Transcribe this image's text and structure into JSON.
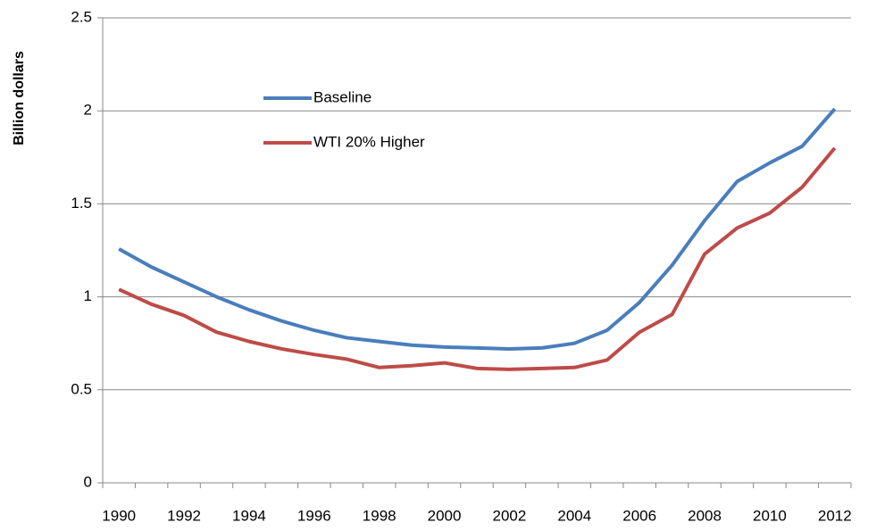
{
  "chart_data": {
    "type": "line",
    "y_label": "Billion dollars",
    "categories": [
      "1990",
      null,
      "1992",
      null,
      "1994",
      null,
      "1996",
      null,
      "1998",
      null,
      "2000",
      null,
      "2002",
      null,
      "2004",
      null,
      "2006",
      null,
      "2008",
      null,
      "2010",
      null,
      "2012"
    ],
    "series": [
      {
        "name": "Baseline",
        "color": "#4a7ebb",
        "values": [
          1.257,
          1.16,
          1.08,
          1.0,
          0.93,
          0.87,
          0.82,
          0.78,
          0.76,
          0.74,
          0.73,
          0.725,
          0.72,
          0.725,
          0.75,
          0.82,
          0.97,
          1.17,
          1.41,
          1.62,
          1.72,
          1.81,
          2.01
        ]
      },
      {
        "name": "WTI 20% Higher",
        "color": "#be4b48",
        "values": [
          1.04,
          0.96,
          0.9,
          0.81,
          0.76,
          0.72,
          0.69,
          0.665,
          0.62,
          0.63,
          0.645,
          0.615,
          0.61,
          0.615,
          0.62,
          0.66,
          0.81,
          0.905,
          1.23,
          1.37,
          1.45,
          1.59,
          1.8
        ]
      }
    ],
    "ylim": [
      0,
      2.5
    ],
    "yticks": [
      0,
      0.5,
      1,
      1.5,
      2,
      2.5
    ],
    "grid": true,
    "legend": "upper center"
  }
}
